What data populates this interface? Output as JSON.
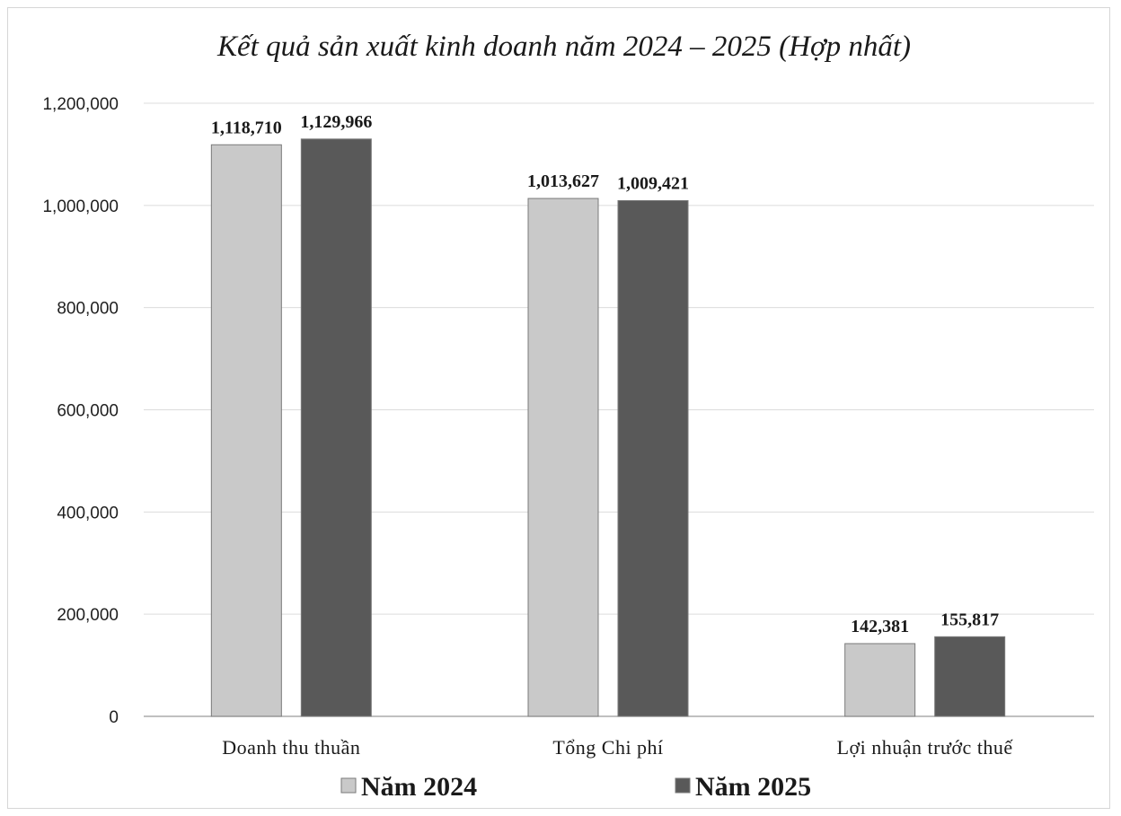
{
  "chart_data": {
    "type": "bar",
    "title": "Kết quả sản xuất kinh doanh năm 2024 – 2025 (Hợp nhất)",
    "categories": [
      "Doanh thu thuần",
      "Tổng Chi phí",
      "Lợi nhuận trước thuế"
    ],
    "series": [
      {
        "name": "Năm 2024",
        "values": [
          1118710,
          1013627,
          142381
        ],
        "labels": [
          "1,118,710",
          "1,013,627",
          "142,381"
        ],
        "color": "#c9c9c9"
      },
      {
        "name": "Năm 2025",
        "values": [
          1129966,
          1009421,
          155817
        ],
        "labels": [
          "1,129,966",
          "1,009,421",
          "155,817"
        ],
        "color": "#595959"
      }
    ],
    "ylim": [
      0,
      1200000
    ],
    "yticks": [
      0,
      200000,
      400000,
      600000,
      800000,
      1000000,
      1200000
    ],
    "ytick_labels": [
      "0",
      "200,000",
      "400,000",
      "600,000",
      "800,000",
      "1,000,000",
      "1,200,000"
    ],
    "grid": true,
    "legend_position": "bottom"
  }
}
